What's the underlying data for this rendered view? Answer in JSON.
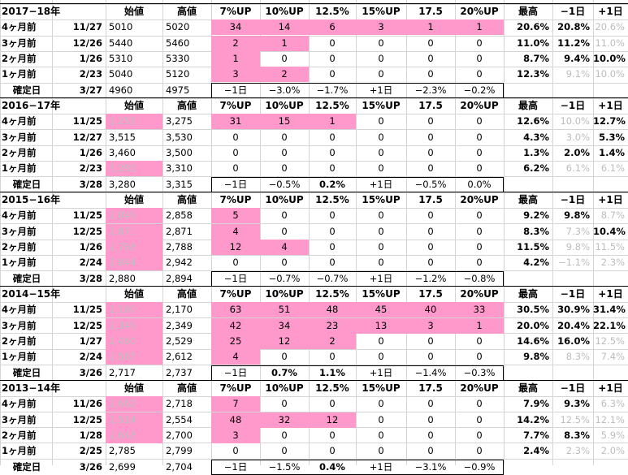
{
  "columns": {
    "open": "始値",
    "high": "高値",
    "up7": "7%UP",
    "up10": "10%UP",
    "up125": "12.5%",
    "up15": "15%UP",
    "up175": "17.5",
    "up20": "20%UP",
    "max": "最高",
    "minus1": "−1日",
    "plus1": "+1日"
  },
  "colors": {
    "highlight": "#ff99cc",
    "muted": "#bdbdbd",
    "grid": "#d4d4d4"
  },
  "blocks": [
    {
      "title": "2017−18年",
      "rows": [
        {
          "label": "4ヶ月前",
          "date": "11/27",
          "open": "5010",
          "open_pink": false,
          "high": "5020",
          "up7": "34",
          "up10": "14",
          "up125": "6",
          "up15": "3",
          "up175": "1",
          "up20": "1",
          "pink_to": 8,
          "max": "20.6%",
          "minus1": "20.8%",
          "minus1_grey": false,
          "plus1": "20.6%",
          "plus1_grey": true
        },
        {
          "label": "3ヶ月前",
          "date": "12/26",
          "open": "5440",
          "open_pink": false,
          "high": "5460",
          "up7": "2",
          "up10": "1",
          "up125": "0",
          "up15": "0",
          "up175": "0",
          "up20": "0",
          "pink_to": 4,
          "max": "11.0%",
          "minus1": "11.2%",
          "minus1_grey": false,
          "plus1": "11.0%",
          "plus1_grey": true
        },
        {
          "label": "2ヶ月前",
          "date": "1/26",
          "open": "5310",
          "open_pink": false,
          "high": "5330",
          "up7": "1",
          "up10": "0",
          "up125": "0",
          "up15": "0",
          "up175": "0",
          "up20": "0",
          "pink_to": 3,
          "max": "8.7%",
          "minus1": "9.4%",
          "minus1_grey": false,
          "plus1": "10.0%",
          "plus1_grey": false
        },
        {
          "label": "1ヶ月前",
          "date": "2/23",
          "open": "5040",
          "open_pink": false,
          "high": "5120",
          "up7": "3",
          "up10": "2",
          "up125": "0",
          "up15": "0",
          "up175": "0",
          "up20": "0",
          "pink_to": 4,
          "max": "12.3%",
          "minus1": "9.1%",
          "minus1_grey": true,
          "plus1": "10.0%",
          "plus1_grey": true
        }
      ],
      "confirm": {
        "label": "確定日",
        "date": "3/27",
        "open": "4960",
        "high": "4975",
        "c1": "−1日",
        "c2": "−3.0%",
        "c3": "−1.7%",
        "c4": "+1日",
        "c5": "−2.3%",
        "c6": "−0.2%",
        "bold3": false,
        "bold6": false
      }
    },
    {
      "title": "2016−17年",
      "rows": [
        {
          "label": "4ヶ月前",
          "date": "11/25",
          "open": "3,255",
          "open_pink": true,
          "high": "3,275",
          "up7": "31",
          "up10": "15",
          "up125": "1",
          "up15": "0",
          "up175": "0",
          "up20": "0",
          "pink_to": 5,
          "max": "12.6%",
          "minus1": "10.0%",
          "minus1_grey": true,
          "plus1": "12.7%",
          "plus1_grey": false
        },
        {
          "label": "3ヶ月前",
          "date": "12/27",
          "open": "3,515",
          "open_pink": false,
          "high": "3,530",
          "up7": "0",
          "up10": "0",
          "up125": "0",
          "up15": "0",
          "up175": "0",
          "up20": "0",
          "pink_to": 2,
          "max": "4.3%",
          "minus1": "3.0%",
          "minus1_grey": true,
          "plus1": "5.3%",
          "plus1_grey": false
        },
        {
          "label": "2ヶ月前",
          "date": "1/26",
          "open": "3,460",
          "open_pink": false,
          "high": "3,500",
          "up7": "0",
          "up10": "0",
          "up125": "0",
          "up15": "0",
          "up175": "0",
          "up20": "0",
          "pink_to": 2,
          "max": "1.3%",
          "minus1": "2.0%",
          "minus1_grey": false,
          "plus1": "1.4%",
          "plus1_grey": false
        },
        {
          "label": "1ヶ月前",
          "date": "2/23",
          "open": "3,285",
          "open_pink": true,
          "high": "3,310",
          "up7": "0",
          "up10": "0",
          "up125": "0",
          "up15": "0",
          "up175": "0",
          "up20": "0",
          "pink_to": 2,
          "max": "6.2%",
          "minus1": "6.1%",
          "minus1_grey": true,
          "plus1": "6.1%",
          "plus1_grey": true
        }
      ],
      "confirm": {
        "label": "確定日",
        "date": "3/28",
        "open": "3,280",
        "high": "3,315",
        "c1": "−1日",
        "c2": "−0.5%",
        "c3": "0.2%",
        "c4": "+1日",
        "c5": "−0.5%",
        "c6": "0.0%",
        "bold3": true,
        "bold6": false
      }
    },
    {
      "title": "2015−16年",
      "rows": [
        {
          "label": "4ヶ月前",
          "date": "11/25",
          "open": "2,849",
          "open_pink": true,
          "high": "2,858",
          "up7": "5",
          "up10": "0",
          "up125": "0",
          "up15": "0",
          "up175": "0",
          "up20": "0",
          "pink_to": 3,
          "max": "9.2%",
          "minus1": "9.8%",
          "minus1_grey": false,
          "plus1": "8.7%",
          "plus1_grey": true
        },
        {
          "label": "3ヶ月前",
          "date": "12/25",
          "open": "2,871",
          "open_pink": true,
          "high": "2,871",
          "up7": "4",
          "up10": "0",
          "up125": "0",
          "up15": "0",
          "up175": "0",
          "up20": "0",
          "pink_to": 3,
          "max": "8.3%",
          "minus1": "7.3%",
          "minus1_grey": true,
          "plus1": "10.4%",
          "plus1_grey": false
        },
        {
          "label": "2ヶ月前",
          "date": "1/26",
          "open": "2,788",
          "open_pink": true,
          "high": "2,788",
          "up7": "12",
          "up10": "4",
          "up125": "0",
          "up15": "0",
          "up175": "0",
          "up20": "0",
          "pink_to": 4,
          "max": "11.5%",
          "minus1": "9.8%",
          "minus1_grey": true,
          "plus1": "11.5%",
          "plus1_grey": true
        },
        {
          "label": "1ヶ月前",
          "date": "2/24",
          "open": "2,844",
          "open_pink": true,
          "high": "2,942",
          "up7": "0",
          "up10": "0",
          "up125": "0",
          "up15": "0",
          "up175": "0",
          "up20": "0",
          "pink_to": 2,
          "max": "4.2%",
          "minus1": "−1.1%",
          "minus1_grey": true,
          "plus1": "2.3%",
          "plus1_grey": true
        }
      ],
      "confirm": {
        "label": "確定日",
        "date": "3/28",
        "open": "2,880",
        "high": "2,894",
        "c1": "−1日",
        "c2": "−0.7%",
        "c3": "−0.7%",
        "c4": "+1日",
        "c5": "−1.2%",
        "c6": "−0.8%",
        "bold3": false,
        "bold6": false
      }
    },
    {
      "title": "2014−15年",
      "rows": [
        {
          "label": "4ヶ月前",
          "date": "11/25",
          "open": "2,160",
          "open_pink": true,
          "high": "2,170",
          "up7": "63",
          "up10": "51",
          "up125": "48",
          "up15": "45",
          "up175": "40",
          "up20": "33",
          "pink_to": 8,
          "max": "30.5%",
          "minus1": "30.9%",
          "minus1_grey": false,
          "plus1": "31.4%",
          "plus1_grey": false
        },
        {
          "label": "3ヶ月前",
          "date": "12/25",
          "open": "2,349",
          "open_pink": true,
          "high": "2,349",
          "up7": "42",
          "up10": "34",
          "up125": "23",
          "up15": "13",
          "up175": "3",
          "up20": "1",
          "pink_to": 8,
          "max": "20.0%",
          "minus1": "20.4%",
          "minus1_grey": false,
          "plus1": "22.1%",
          "plus1_grey": false
        },
        {
          "label": "2ヶ月前",
          "date": "1/27",
          "open": "2,460",
          "open_pink": true,
          "high": "2,529",
          "up7": "25",
          "up10": "12",
          "up125": "2",
          "up15": "0",
          "up175": "0",
          "up20": "0",
          "pink_to": 5,
          "max": "14.6%",
          "minus1": "16.0%",
          "minus1_grey": false,
          "plus1": "12.5%",
          "plus1_grey": true
        },
        {
          "label": "1ヶ月前",
          "date": "2/24",
          "open": "2,567",
          "open_pink": true,
          "high": "2,612",
          "up7": "4",
          "up10": "0",
          "up125": "0",
          "up15": "0",
          "up175": "0",
          "up20": "0",
          "pink_to": 3,
          "max": "9.8%",
          "minus1": "8.3%",
          "minus1_grey": true,
          "plus1": "7.4%",
          "plus1_grey": true
        }
      ],
      "confirm": {
        "label": "確定日",
        "date": "3/26",
        "open": "2,717",
        "high": "2,737",
        "c1": "−1日",
        "c2": "0.7%",
        "c3": "1.1%",
        "c4": "+1日",
        "c5": "−1.4%",
        "c6": "−0.3%",
        "bold2": true,
        "bold3": true,
        "bold6": false
      }
    },
    {
      "title": "2013−14年",
      "rows": [
        {
          "label": "4ヶ月前",
          "date": "11/26",
          "open": "2,662",
          "open_pink": true,
          "high": "2,718",
          "up7": "7",
          "up10": "0",
          "up125": "0",
          "up15": "0",
          "up175": "0",
          "up20": "0",
          "pink_to": 3,
          "max": "7.9%",
          "minus1": "9.3%",
          "minus1_grey": false,
          "plus1": "6.3%",
          "plus1_grey": true
        },
        {
          "label": "3ヶ月前",
          "date": "12/25",
          "open": "2,514",
          "open_pink": true,
          "high": "2,554",
          "up7": "48",
          "up10": "32",
          "up125": "12",
          "up15": "0",
          "up175": "0",
          "up20": "0",
          "pink_to": 5,
          "max": "14.2%",
          "minus1": "12.5%",
          "minus1_grey": true,
          "plus1": "12.1%",
          "plus1_grey": true
        },
        {
          "label": "2ヶ月前",
          "date": "1/28",
          "open": "2,648",
          "open_pink": true,
          "high": "2,700",
          "up7": "3",
          "up10": "0",
          "up125": "0",
          "up15": "0",
          "up175": "0",
          "up20": "0",
          "pink_to": 3,
          "max": "7.7%",
          "minus1": "8.3%",
          "minus1_grey": false,
          "plus1": "5.9%",
          "plus1_grey": true
        },
        {
          "label": "1ヶ月前",
          "date": "2/25",
          "open": "2,785",
          "open_pink": false,
          "high": "2,799",
          "up7": "0",
          "up10": "0",
          "up125": "0",
          "up15": "0",
          "up175": "0",
          "up20": "0",
          "pink_to": 2,
          "max": "2.4%",
          "minus1": "2.3%",
          "minus1_grey": true,
          "plus1": "2.0%",
          "plus1_grey": true
        }
      ],
      "confirm": {
        "label": "確定日",
        "date": "3/26",
        "open": "2,699",
        "high": "2,704",
        "c1": "−1日",
        "c2": "−1.5%",
        "c3": "0.4%",
        "c4": "+1日",
        "c5": "−3.1%",
        "c6": "−0.9%",
        "bold3": true,
        "bold6": false
      }
    }
  ]
}
